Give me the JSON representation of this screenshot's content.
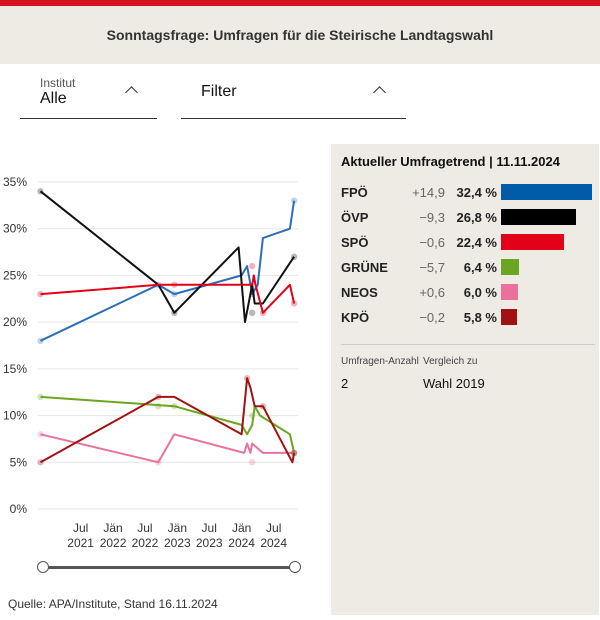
{
  "header": {
    "title": "Sonntagsfrage: Umfragen für die Steirische Landtagswahl"
  },
  "controls": {
    "institut_label": "Institut",
    "institut_value": "Alle",
    "filter_value": "Filter"
  },
  "panel": {
    "title": "Aktueller Umfragetrend | 11.11.2024",
    "parties": [
      {
        "name": "FPÖ",
        "change": "+14,9",
        "value": "32,4 %",
        "pct": 32.4,
        "color": "#005ca8"
      },
      {
        "name": "ÖVP",
        "change": "−9,3",
        "value": "26,8 %",
        "pct": 26.8,
        "color": "#000000"
      },
      {
        "name": "SPÖ",
        "change": "−0,6",
        "value": "22,4 %",
        "pct": 22.4,
        "color": "#e2001a"
      },
      {
        "name": "GRÜNE",
        "change": "−5,7",
        "value": "6,4 %",
        "pct": 6.4,
        "color": "#6aa620"
      },
      {
        "name": "NEOS",
        "change": "+0,6",
        "value": "6,0 %",
        "pct": 6.0,
        "color": "#e8729c"
      },
      {
        "name": "KPÖ",
        "change": "−0,2",
        "value": "5,8 %",
        "pct": 5.8,
        "color": "#a31212"
      }
    ],
    "count_label": "Umfragen-Anzahl",
    "count_value": "2",
    "compare_label": "Vergleich zu",
    "compare_value": "Wahl 2019"
  },
  "footer": {
    "source": "Quelle: APA/Institute, Stand 16.11.2024"
  },
  "chart_data": {
    "type": "line",
    "title": "",
    "xlabel": "",
    "ylabel": "",
    "ylim": [
      0,
      35
    ],
    "xlim": [
      "2020-11-01",
      "2024-11-16"
    ],
    "y_ticks": [
      "0%",
      "5%",
      "10%",
      "15%",
      "20%",
      "25%",
      "30%",
      "35%"
    ],
    "x_ticks": [
      {
        "date": "2021-07-01",
        "line1": "Jul",
        "line2": "2021"
      },
      {
        "date": "2022-01-01",
        "line1": "Jän",
        "line2": "2022"
      },
      {
        "date": "2022-07-01",
        "line1": "Jul",
        "line2": "2022"
      },
      {
        "date": "2023-01-01",
        "line1": "Jän",
        "line2": "2023"
      },
      {
        "date": "2023-07-01",
        "line1": "Jul",
        "line2": "2023"
      },
      {
        "date": "2024-01-01",
        "line1": "Jän",
        "line2": "2024"
      },
      {
        "date": "2024-07-01",
        "line1": "Jul",
        "line2": "2024"
      }
    ],
    "grid": true,
    "series": [
      {
        "name": "FPÖ",
        "color": "#2a6fb8",
        "trend": [
          [
            "2020-11-15",
            18
          ],
          [
            "2022-09-15",
            24
          ],
          [
            "2022-12-15",
            23
          ],
          [
            "2024-01-01",
            25
          ],
          [
            "2024-02-01",
            26
          ],
          [
            "2024-03-01",
            23
          ],
          [
            "2024-04-01",
            24
          ],
          [
            "2024-05-01",
            29
          ],
          [
            "2024-10-01",
            30
          ],
          [
            "2024-10-25",
            33
          ]
        ],
        "polls": [
          [
            "2020-11-15",
            18
          ],
          [
            "2022-09-15",
            24
          ],
          [
            "2022-12-15",
            23
          ],
          [
            "2024-03-01",
            23
          ],
          [
            "2024-10-25",
            33
          ]
        ]
      },
      {
        "name": "ÖVP",
        "color": "#111111",
        "trend": [
          [
            "2020-11-15",
            34
          ],
          [
            "2022-09-15",
            24
          ],
          [
            "2022-12-15",
            21
          ],
          [
            "2023-12-15",
            28
          ],
          [
            "2024-01-20",
            20
          ],
          [
            "2024-03-01",
            24
          ],
          [
            "2024-03-15",
            22
          ],
          [
            "2024-05-01",
            22
          ],
          [
            "2024-10-25",
            27
          ]
        ],
        "polls": [
          [
            "2020-11-15",
            34
          ],
          [
            "2022-12-15",
            21
          ],
          [
            "2024-03-01",
            21
          ],
          [
            "2024-10-25",
            27
          ]
        ]
      },
      {
        "name": "SPÖ",
        "color": "#e2001a",
        "trend": [
          [
            "2020-11-15",
            23
          ],
          [
            "2022-09-15",
            24
          ],
          [
            "2024-03-01",
            24
          ],
          [
            "2024-03-10",
            25
          ],
          [
            "2024-03-20",
            24
          ],
          [
            "2024-05-01",
            21
          ],
          [
            "2024-10-01",
            24
          ],
          [
            "2024-10-25",
            22
          ]
        ],
        "polls": [
          [
            "2020-11-15",
            23
          ],
          [
            "2022-12-15",
            24
          ],
          [
            "2024-03-01",
            26
          ],
          [
            "2024-05-01",
            21
          ],
          [
            "2024-10-25",
            22
          ]
        ]
      },
      {
        "name": "GRÜNE",
        "color": "#6aa620",
        "trend": [
          [
            "2020-11-15",
            12
          ],
          [
            "2022-12-15",
            11
          ],
          [
            "2024-01-01",
            9
          ],
          [
            "2024-02-01",
            8
          ],
          [
            "2024-03-01",
            9
          ],
          [
            "2024-03-15",
            11
          ],
          [
            "2024-04-15",
            10
          ],
          [
            "2024-10-01",
            8
          ],
          [
            "2024-10-25",
            6
          ]
        ],
        "polls": [
          [
            "2020-11-15",
            12
          ],
          [
            "2022-09-15",
            11
          ],
          [
            "2022-12-15",
            11
          ],
          [
            "2024-03-01",
            10
          ],
          [
            "2024-10-25",
            6
          ]
        ]
      },
      {
        "name": "NEOS",
        "color": "#e8729c",
        "trend": [
          [
            "2020-11-15",
            8
          ],
          [
            "2022-09-15",
            5
          ],
          [
            "2022-12-15",
            8
          ],
          [
            "2024-01-15",
            6
          ],
          [
            "2024-02-01",
            7
          ],
          [
            "2024-02-20",
            6
          ],
          [
            "2024-03-01",
            7
          ],
          [
            "2024-05-01",
            6
          ],
          [
            "2024-10-25",
            6
          ]
        ],
        "polls": [
          [
            "2020-11-15",
            8
          ],
          [
            "2022-09-15",
            5
          ],
          [
            "2024-03-01",
            5
          ],
          [
            "2024-10-25",
            6
          ]
        ]
      },
      {
        "name": "KPÖ",
        "color": "#a31212",
        "trend": [
          [
            "2020-11-15",
            5
          ],
          [
            "2022-09-15",
            12
          ],
          [
            "2022-12-15",
            12
          ],
          [
            "2024-01-01",
            8
          ],
          [
            "2024-02-01",
            14
          ],
          [
            "2024-02-20",
            13
          ],
          [
            "2024-03-15",
            11
          ],
          [
            "2024-05-01",
            11
          ],
          [
            "2024-10-15",
            5
          ],
          [
            "2024-10-25",
            6
          ]
        ],
        "polls": [
          [
            "2020-11-15",
            5
          ],
          [
            "2022-09-15",
            12
          ],
          [
            "2024-02-01",
            14
          ],
          [
            "2024-05-01",
            11
          ],
          [
            "2024-10-25",
            6
          ]
        ]
      }
    ]
  }
}
